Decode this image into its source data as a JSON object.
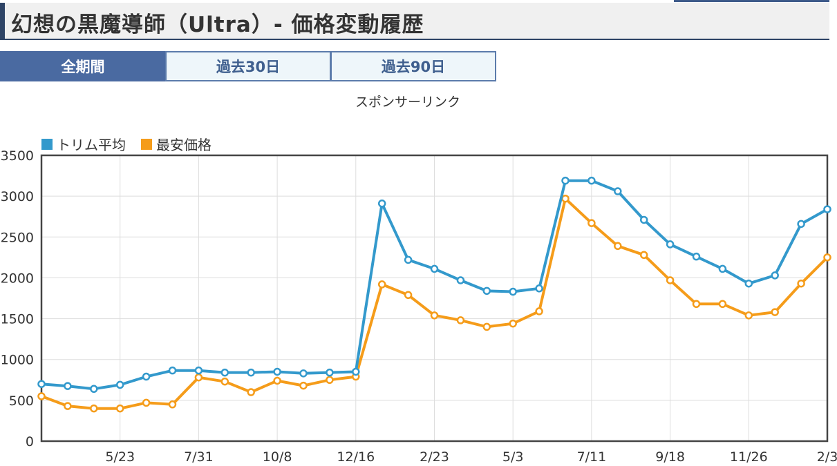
{
  "header": {
    "title": "幻想の黒魔導師（Ultra）- 価格変動履歴"
  },
  "tabs": [
    {
      "label": "全期間",
      "active": true
    },
    {
      "label": "過去30日",
      "active": false
    },
    {
      "label": "過去90日",
      "active": false
    }
  ],
  "sponsor_text": "スポンサーリンク",
  "colors": {
    "trim_avg": "#3399cc",
    "min_price": "#f59c1a",
    "tab_active": "#4a6aa1",
    "header_accent": "#2e4466"
  },
  "chart_data": {
    "type": "line",
    "ylim": [
      0,
      3500
    ],
    "yticks": [
      "0",
      "500",
      "1000",
      "1500",
      "2000",
      "2500",
      "3000",
      "3500"
    ],
    "x_tick_labels": [
      {
        "index": 3,
        "label": "5/23"
      },
      {
        "index": 6,
        "label": "7/31"
      },
      {
        "index": 9,
        "label": "10/8"
      },
      {
        "index": 12,
        "label": "12/16"
      },
      {
        "index": 15,
        "label": "2/23"
      },
      {
        "index": 18,
        "label": "5/3"
      },
      {
        "index": 21,
        "label": "7/11"
      },
      {
        "index": 24,
        "label": "9/18"
      },
      {
        "index": 27,
        "label": "11/26"
      },
      {
        "index": 30,
        "label": "2/3"
      }
    ],
    "grid": true,
    "legend_position": "top-left",
    "series": [
      {
        "name": "トリム平均",
        "color": "#3399cc",
        "values": [
          700,
          675,
          640,
          690,
          790,
          865,
          865,
          840,
          840,
          850,
          830,
          840,
          850,
          2910,
          2220,
          2110,
          1970,
          1840,
          1830,
          1870,
          3190,
          3190,
          3060,
          2710,
          2410,
          2260,
          2110,
          1930,
          2030,
          2660,
          2840
        ]
      },
      {
        "name": "最安価格",
        "color": "#f59c1a",
        "values": [
          550,
          430,
          400,
          400,
          470,
          450,
          780,
          730,
          600,
          740,
          680,
          750,
          790,
          1920,
          1790,
          1540,
          1480,
          1400,
          1440,
          1590,
          2970,
          2670,
          2390,
          2280,
          1970,
          1680,
          1680,
          1540,
          1580,
          1930,
          2250
        ]
      }
    ]
  }
}
